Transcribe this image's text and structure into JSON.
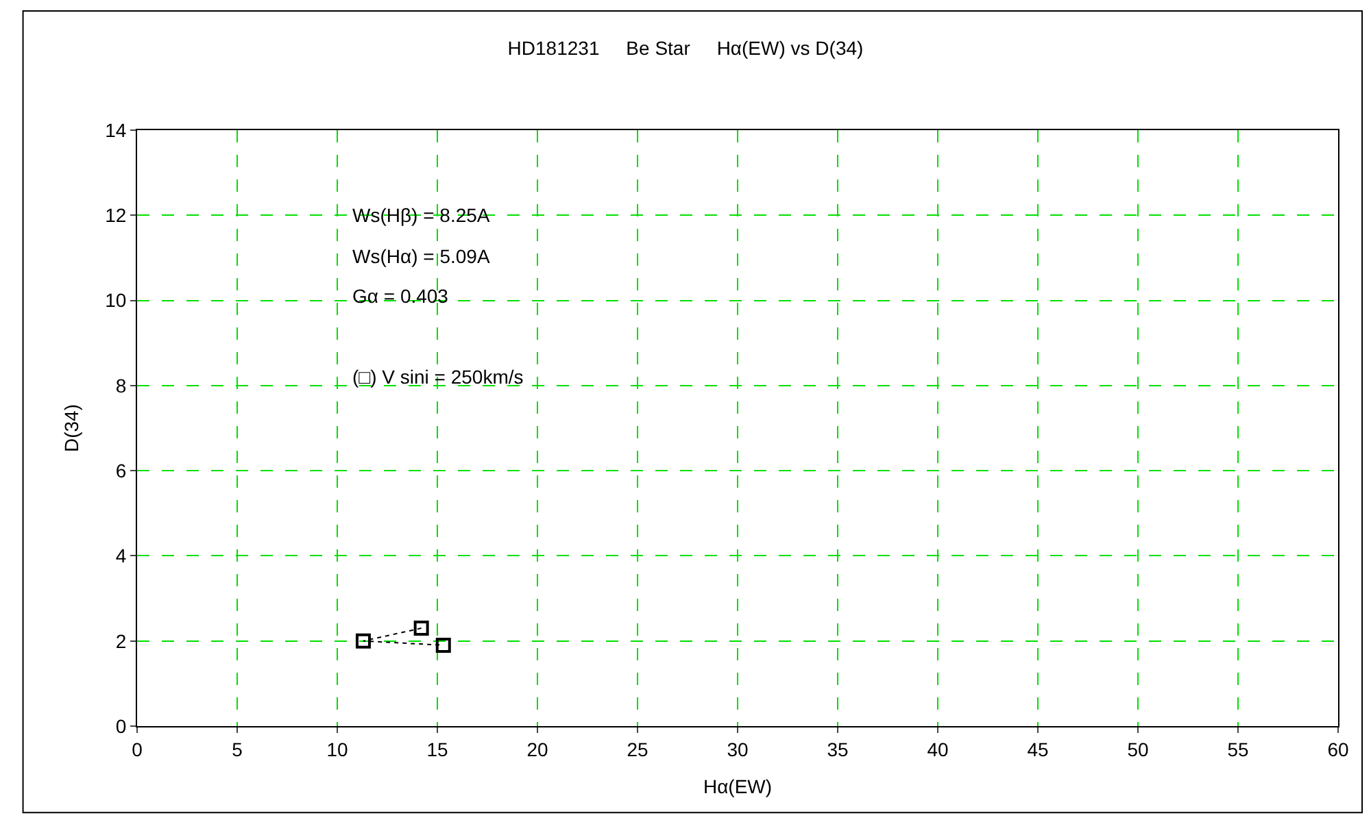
{
  "chart_data": {
    "type": "line",
    "title": "HD181231     Be Star     Hα(EW) vs D(34)",
    "xlabel": "Hα(EW)",
    "ylabel": "D(34)",
    "annotations": [
      "Ws(Hβ) = 8.25A",
      "Ws(Hα) = 5.09A",
      "Gα = 0.403",
      "(□) V sini = 250km/s"
    ],
    "x": [
      14.2,
      11.3,
      15.3
    ],
    "values": [
      2.3,
      2.0,
      1.9
    ],
    "color": "#000000",
    "marker": "square",
    "line_style": "dotted",
    "xlim": [
      0,
      60
    ],
    "xticks": [
      0,
      5,
      10,
      15,
      20,
      25,
      30,
      35,
      40,
      45,
      50,
      55,
      60
    ],
    "ylim": [
      0,
      14
    ],
    "yticks": [
      0,
      2,
      4,
      6,
      8,
      10,
      12,
      14
    ],
    "grid": true
  }
}
